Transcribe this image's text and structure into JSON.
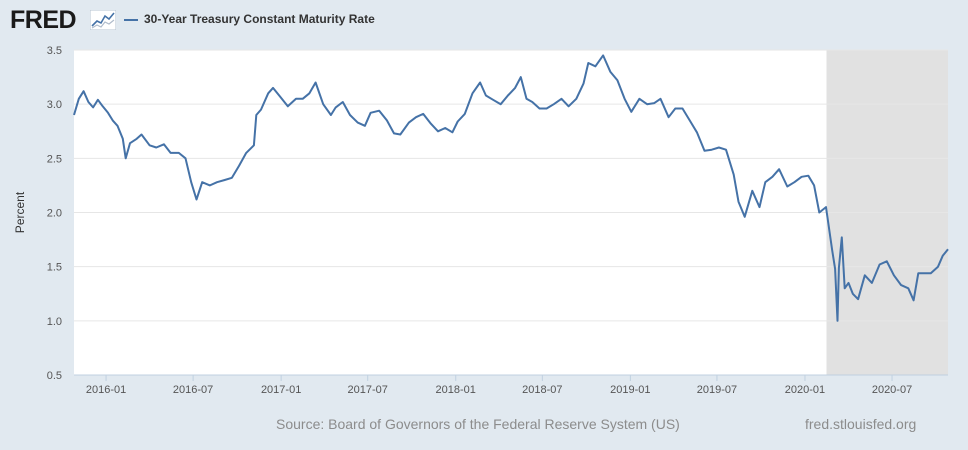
{
  "header": {
    "logo_text": "FRED",
    "legend_label": "30-Year Treasury Constant Maturity Rate",
    "legend_color": "#4572a7"
  },
  "footer": {
    "source": "Source: Board of Governors of the Federal Reserve System (US)",
    "site": "fred.stlouisfed.org"
  },
  "chart_data": {
    "type": "line",
    "title": "",
    "xlabel": "",
    "ylabel": "Percent",
    "ylim": [
      0.5,
      3.5
    ],
    "xlim": [
      "2015-10-26",
      "2020-10-26"
    ],
    "yticks": [
      "0.5",
      "1.0",
      "1.5",
      "2.0",
      "2.5",
      "3.0",
      "3.5"
    ],
    "xticks": [
      "2016-01",
      "2016-07",
      "2017-01",
      "2017-07",
      "2018-01",
      "2018-07",
      "2019-01",
      "2019-07",
      "2020-01",
      "2020-07"
    ],
    "grid": true,
    "recession_shading": {
      "start": "2020-02-15",
      "end": "2020-10-26",
      "color": "#e1e1e1"
    },
    "series": [
      {
        "name": "30-Year Treasury Constant Maturity Rate",
        "color": "#4572a7",
        "x": [
          "2015-10-26",
          "2015-11-05",
          "2015-11-15",
          "2015-11-25",
          "2015-12-05",
          "2015-12-15",
          "2015-12-25",
          "2016-01-05",
          "2016-01-15",
          "2016-01-25",
          "2016-02-05",
          "2016-02-11",
          "2016-02-20",
          "2016-03-05",
          "2016-03-15",
          "2016-04-01",
          "2016-04-15",
          "2016-05-01",
          "2016-05-15",
          "2016-06-01",
          "2016-06-15",
          "2016-06-27",
          "2016-07-08",
          "2016-07-20",
          "2016-08-05",
          "2016-08-20",
          "2016-09-05",
          "2016-09-20",
          "2016-10-05",
          "2016-10-20",
          "2016-11-05",
          "2016-11-10",
          "2016-11-20",
          "2016-12-05",
          "2016-12-15",
          "2016-12-28",
          "2017-01-15",
          "2017-02-01",
          "2017-02-15",
          "2017-03-01",
          "2017-03-14",
          "2017-03-30",
          "2017-04-15",
          "2017-04-25",
          "2017-05-10",
          "2017-05-25",
          "2017-06-10",
          "2017-06-25",
          "2017-07-07",
          "2017-07-25",
          "2017-08-10",
          "2017-08-25",
          "2017-09-07",
          "2017-09-25",
          "2017-10-10",
          "2017-10-25",
          "2017-11-10",
          "2017-11-25",
          "2017-12-10",
          "2017-12-25",
          "2018-01-05",
          "2018-01-20",
          "2018-02-05",
          "2018-02-21",
          "2018-03-05",
          "2018-03-20",
          "2018-04-05",
          "2018-04-20",
          "2018-05-05",
          "2018-05-17",
          "2018-05-29",
          "2018-06-10",
          "2018-06-25",
          "2018-07-10",
          "2018-07-25",
          "2018-08-10",
          "2018-08-25",
          "2018-09-10",
          "2018-09-25",
          "2018-10-05",
          "2018-10-20",
          "2018-11-05",
          "2018-11-20",
          "2018-12-05",
          "2018-12-20",
          "2019-01-03",
          "2019-01-20",
          "2019-02-05",
          "2019-02-20",
          "2019-03-05",
          "2019-03-22",
          "2019-04-05",
          "2019-04-20",
          "2019-05-05",
          "2019-05-20",
          "2019-06-05",
          "2019-06-20",
          "2019-07-05",
          "2019-07-20",
          "2019-08-05",
          "2019-08-15",
          "2019-08-28",
          "2019-09-13",
          "2019-09-28",
          "2019-10-10",
          "2019-10-25",
          "2019-11-08",
          "2019-11-25",
          "2019-12-10",
          "2019-12-25",
          "2020-01-08",
          "2020-01-20",
          "2020-01-31",
          "2020-02-14",
          "2020-02-27",
          "2020-03-04",
          "2020-03-09",
          "2020-03-12",
          "2020-03-18",
          "2020-03-24",
          "2020-04-01",
          "2020-04-10",
          "2020-04-21",
          "2020-05-05",
          "2020-05-20",
          "2020-06-05",
          "2020-06-20",
          "2020-07-05",
          "2020-07-20",
          "2020-08-04",
          "2020-08-15",
          "2020-08-25",
          "2020-09-05",
          "2020-09-20",
          "2020-10-05",
          "2020-10-15",
          "2020-10-26"
        ],
        "y": [
          2.9,
          3.05,
          3.12,
          3.02,
          2.97,
          3.04,
          2.98,
          2.92,
          2.85,
          2.8,
          2.68,
          2.5,
          2.64,
          2.68,
          2.72,
          2.62,
          2.6,
          2.63,
          2.55,
          2.55,
          2.5,
          2.28,
          2.12,
          2.28,
          2.25,
          2.28,
          2.3,
          2.32,
          2.43,
          2.55,
          2.62,
          2.9,
          2.95,
          3.1,
          3.15,
          3.08,
          2.98,
          3.05,
          3.05,
          3.1,
          3.2,
          3.0,
          2.9,
          2.97,
          3.02,
          2.9,
          2.83,
          2.8,
          2.92,
          2.94,
          2.85,
          2.73,
          2.72,
          2.83,
          2.88,
          2.91,
          2.82,
          2.75,
          2.78,
          2.74,
          2.84,
          2.91,
          3.1,
          3.2,
          3.08,
          3.04,
          3.0,
          3.08,
          3.15,
          3.25,
          3.05,
          3.02,
          2.96,
          2.96,
          3.0,
          3.05,
          2.98,
          3.05,
          3.19,
          3.38,
          3.35,
          3.45,
          3.3,
          3.22,
          3.05,
          2.93,
          3.05,
          3.0,
          3.01,
          3.05,
          2.88,
          2.96,
          2.96,
          2.85,
          2.74,
          2.57,
          2.58,
          2.6,
          2.58,
          2.35,
          2.1,
          1.96,
          2.2,
          2.05,
          2.28,
          2.33,
          2.4,
          2.24,
          2.28,
          2.33,
          2.34,
          2.25,
          2.0,
          2.05,
          1.65,
          1.48,
          1.0,
          1.49,
          1.77,
          1.3,
          1.35,
          1.25,
          1.2,
          1.42,
          1.35,
          1.52,
          1.55,
          1.42,
          1.33,
          1.3,
          1.19,
          1.44,
          1.44,
          1.44,
          1.5,
          1.6,
          1.66
        ]
      }
    ]
  }
}
